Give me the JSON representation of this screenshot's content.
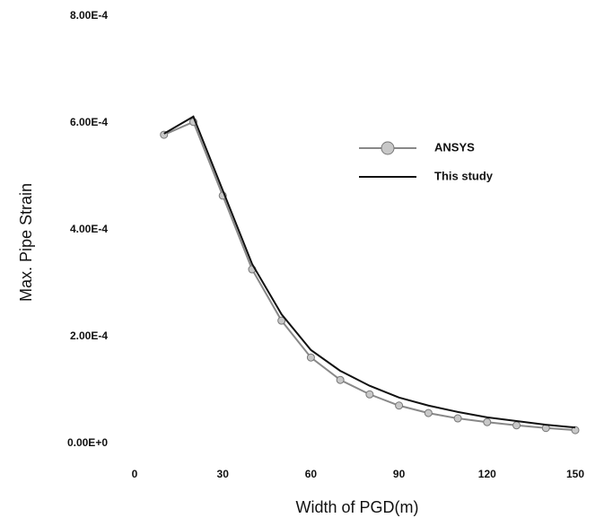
{
  "chart_data": {
    "type": "line",
    "x_label": "Width of PGD(m)",
    "y_label": "Max. Pipe Strain",
    "x": [
      10,
      20,
      30,
      40,
      50,
      60,
      70,
      80,
      90,
      100,
      110,
      120,
      130,
      140,
      150
    ],
    "series": [
      {
        "name": "ANSYS",
        "color": "#888888",
        "marker": true,
        "values": [
          0.000578,
          0.000602,
          0.000464,
          0.000326,
          0.00023,
          0.000161,
          0.000119,
          9.2e-05,
          7.1e-05,
          5.7e-05,
          4.7e-05,
          4e-05,
          3.4e-05,
          2.9e-05,
          2.5e-05
        ]
      },
      {
        "name": "This study",
        "color": "#111111",
        "marker": false,
        "values": [
          0.00058,
          0.000612,
          0.000474,
          0.000336,
          0.000242,
          0.000175,
          0.000136,
          0.000108,
          8.6e-05,
          7.1e-05,
          5.9e-05,
          4.9e-05,
          4.2e-05,
          3.5e-05,
          3e-05
        ]
      }
    ],
    "xlim": [
      0,
      150
    ],
    "xticks": [
      0,
      30,
      60,
      90,
      120,
      150
    ],
    "ylim": [
      0,
      0.0008
    ],
    "yticks": [
      {
        "value": 0,
        "label": "0.00E+0"
      },
      {
        "value": 0.0002,
        "label": "2.00E-4"
      },
      {
        "value": 0.0004,
        "label": "4.00E-4"
      },
      {
        "value": 0.0006,
        "label": "6.00E-4"
      },
      {
        "value": 0.0008,
        "label": "8.00E-4"
      }
    ],
    "grid": false,
    "legend": "upper right"
  }
}
